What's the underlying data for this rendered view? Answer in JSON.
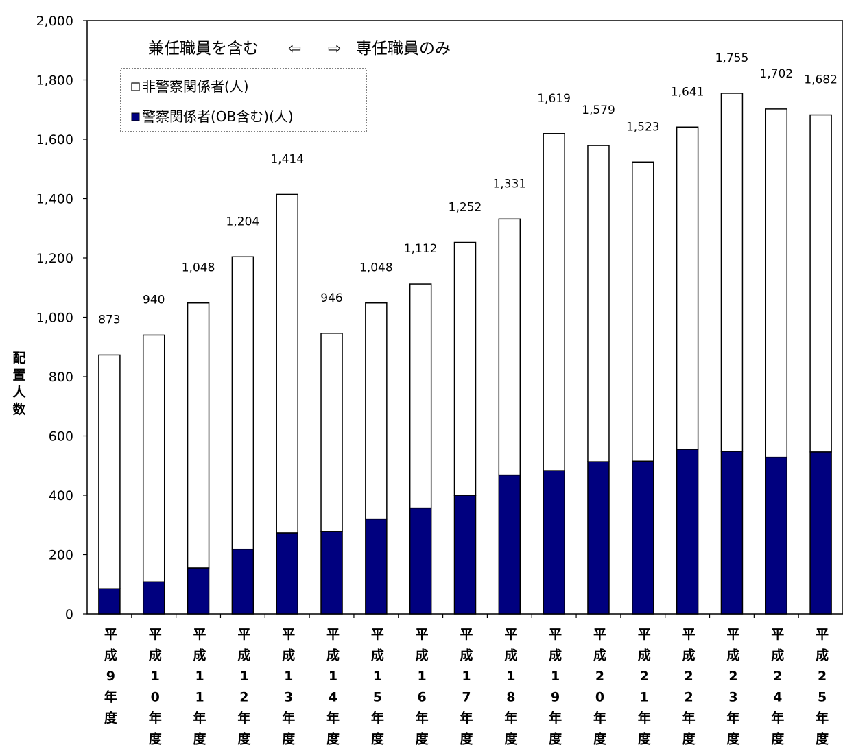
{
  "chart_data": {
    "type": "bar",
    "stacked": true,
    "ylabel": "配置人数",
    "ylim": [
      0,
      2000
    ],
    "yticks": [
      "0",
      "200",
      "400",
      "600",
      "800",
      "1,000",
      "1,200",
      "1,400",
      "1,600",
      "1,800",
      "2,000"
    ],
    "categories": [
      "平成9年度",
      "平成10年度",
      "平成11年度",
      "平成12年度",
      "平成13年度",
      "平成14年度",
      "平成15年度",
      "平成16年度",
      "平成17年度",
      "平成18年度",
      "平成19年度",
      "平成20年度",
      "平成21年度",
      "平成22年度",
      "平成23年度",
      "平成24年度",
      "平成25年度"
    ],
    "series": [
      {
        "name": "警察関係者(OB含む)(人)",
        "color": "#00007f",
        "values": [
          85,
          108,
          155,
          218,
          273,
          278,
          320,
          357,
          400,
          468,
          483,
          513,
          515,
          555,
          548,
          528,
          546
        ]
      },
      {
        "name": "非警察関係者(人)",
        "color": "#ffffff",
        "values": [
          788,
          832,
          893,
          986,
          1141,
          668,
          728,
          755,
          852,
          863,
          1136,
          1066,
          1008,
          1086,
          1207,
          1174,
          1136
        ]
      }
    ],
    "totals": [
      873,
      940,
      1048,
      1204,
      1414,
      946,
      1048,
      1112,
      1252,
      1331,
      1619,
      1579,
      1523,
      1641,
      1755,
      1702,
      1682
    ],
    "total_labels": [
      "873",
      "940",
      "1,048",
      "1,204",
      "1,414",
      "946",
      "1,048",
      "1,112",
      "1,252",
      "1,331",
      "1,619",
      "1,579",
      "1,523",
      "1,641",
      "1,755",
      "1,702",
      "1,682"
    ],
    "legend": {
      "placement": "top-left",
      "items": [
        {
          "marker": "□",
          "label": "非警察関係者(人)"
        },
        {
          "marker": "■",
          "label": "警察関係者(OB含む)(人)"
        }
      ]
    },
    "annotation": {
      "left_text": "兼任職員を含む",
      "left_arrow": "⇦",
      "right_arrow": "⇨",
      "right_text": "専任職員のみ"
    },
    "grid": false
  }
}
